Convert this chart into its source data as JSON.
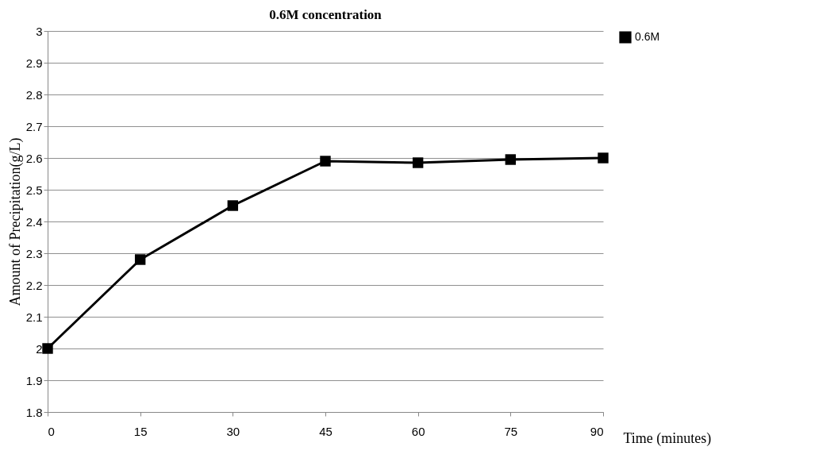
{
  "chart_data": {
    "type": "line",
    "title": "0.6M concentration",
    "xlabel": "Time (minutes)",
    "ylabel": "Amount of Precipitation(g/L)",
    "x": [
      0,
      15,
      30,
      45,
      60,
      75,
      90
    ],
    "series": [
      {
        "name": "0.6M",
        "color": "#000000",
        "values": [
          2.0,
          2.28,
          2.45,
          2.59,
          2.585,
          2.595,
          2.6
        ]
      }
    ],
    "xlim": [
      0,
      90
    ],
    "xticks": [
      0,
      15,
      30,
      45,
      60,
      75,
      90
    ],
    "ylim": [
      1.8,
      3
    ],
    "yticks": [
      1.8,
      1.9,
      2,
      2.1,
      2.2,
      2.3,
      2.4,
      2.5,
      2.6,
      2.7,
      2.8,
      2.9,
      3
    ],
    "grid": "y",
    "legend": "right",
    "marker": "square",
    "line_style": "solid"
  }
}
